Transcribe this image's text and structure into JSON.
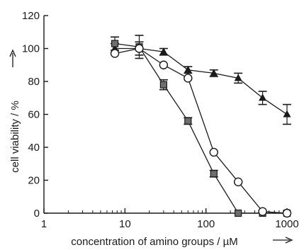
{
  "chart_data": {
    "type": "line",
    "x_scale": "log",
    "xlim": [
      1,
      1000
    ],
    "ylim": [
      0,
      120
    ],
    "x_ticks": [
      1,
      10,
      100,
      1000
    ],
    "x_tick_labels": [
      "1",
      "10",
      "100",
      "1000"
    ],
    "y_ticks": [
      0,
      20,
      40,
      60,
      80,
      100,
      120
    ],
    "y_tick_labels": [
      "0",
      "20",
      "40",
      "60",
      "80",
      "100",
      "120"
    ],
    "xlabel": "concentration of amino groups / µM",
    "ylabel": "cell viability / %",
    "grid": false,
    "series": [
      {
        "marker": "triangle",
        "x": [
          7.5,
          15,
          30,
          60,
          125,
          250,
          500,
          1000
        ],
        "y": [
          100,
          100,
          98,
          87,
          85,
          82,
          70,
          60
        ],
        "err": [
          3,
          4,
          2,
          2,
          2,
          3,
          4,
          6
        ]
      },
      {
        "marker": "square",
        "x": [
          7.5,
          15,
          30,
          60,
          125,
          250,
          500,
          1000
        ],
        "y": [
          103,
          101,
          78,
          56,
          24,
          0,
          0,
          0
        ],
        "err": [
          4,
          7,
          3,
          2,
          2,
          0,
          0,
          0
        ]
      },
      {
        "marker": "circle",
        "x": [
          7.5,
          15,
          30,
          60,
          125,
          250,
          500,
          1000
        ],
        "y": [
          97,
          100,
          90,
          82,
          37,
          19,
          1,
          0
        ],
        "err": [
          0,
          0,
          0,
          0,
          0,
          0,
          0,
          0
        ]
      }
    ]
  }
}
